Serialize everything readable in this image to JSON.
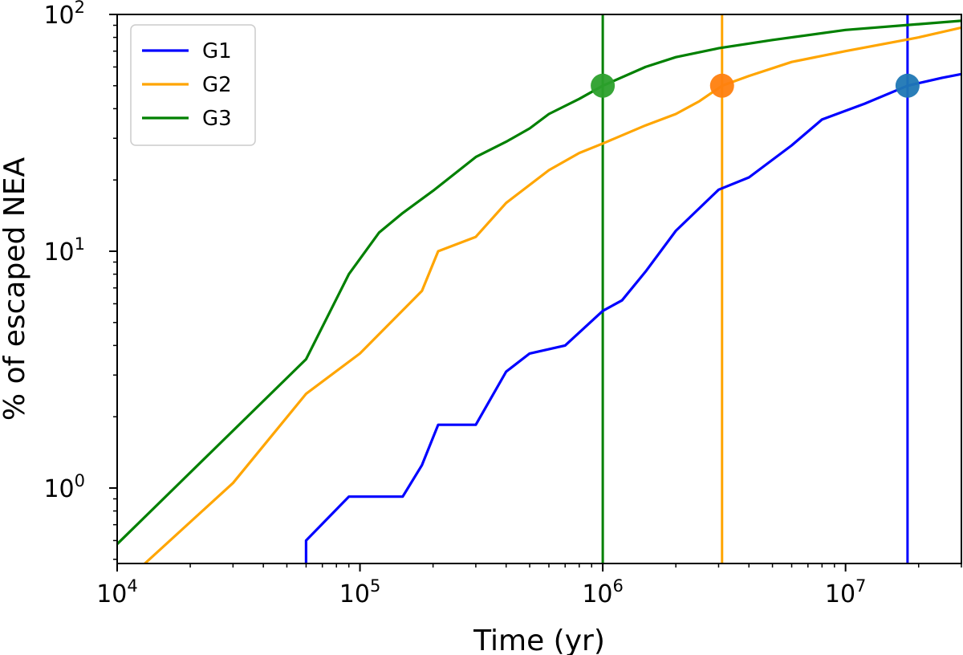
{
  "chart_data": {
    "type": "line",
    "xlabel": "Time (yr)",
    "ylabel": "% of escaped NEA",
    "xscale": "log",
    "yscale": "log",
    "xlim": [
      10000,
      30000000
    ],
    "ylim": [
      0.48,
      100
    ],
    "x_ticks": [
      {
        "value": 10000,
        "base": "10",
        "exp": "4"
      },
      {
        "value": 100000,
        "base": "10",
        "exp": "5"
      },
      {
        "value": 1000000,
        "base": "10",
        "exp": "6"
      },
      {
        "value": 10000000,
        "base": "10",
        "exp": "7"
      }
    ],
    "y_ticks": [
      {
        "value": 1,
        "base": "10",
        "exp": "0"
      },
      {
        "value": 10,
        "base": "10",
        "exp": "1"
      },
      {
        "value": 100,
        "base": "10",
        "exp": "2"
      }
    ],
    "grid": false,
    "legend_position": "top-left",
    "series": [
      {
        "name": "G1",
        "color": "#0000ff",
        "x": [
          60000,
          60000,
          90000,
          150000,
          180000,
          210000,
          300000,
          400000,
          500000,
          700000,
          1000000,
          1200000,
          1500000,
          2000000,
          3000000,
          4000000,
          6000000,
          8000000,
          12000000,
          18000000,
          25000000,
          30000000
        ],
        "y": [
          0.48,
          0.6,
          0.92,
          0.92,
          1.25,
          1.85,
          1.85,
          3.1,
          3.7,
          4.0,
          5.6,
          6.2,
          8.2,
          12.2,
          18.2,
          20.5,
          28.0,
          36.0,
          42.0,
          50.0,
          54.0,
          56.0
        ]
      },
      {
        "name": "G2",
        "color": "#ffa500",
        "x": [
          13000,
          30000,
          60000,
          100000,
          180000,
          210000,
          300000,
          400000,
          600000,
          800000,
          1000000,
          1500000,
          2000000,
          2500000,
          3100000,
          4000000,
          6000000,
          10000000,
          20000000,
          30000000
        ],
        "y": [
          0.48,
          1.05,
          2.5,
          3.7,
          6.8,
          10.0,
          11.5,
          16.0,
          22.0,
          26.0,
          28.5,
          34.0,
          38.0,
          43.0,
          50.0,
          55.0,
          63.0,
          70.0,
          80.0,
          88.0
        ]
      },
      {
        "name": "G3",
        "color": "#008000",
        "x": [
          10000,
          60000,
          90000,
          120000,
          150000,
          200000,
          300000,
          400000,
          500000,
          600000,
          800000,
          1000000,
          1500000,
          2000000,
          3000000,
          5000000,
          10000000,
          20000000,
          30000000
        ],
        "y": [
          0.58,
          3.5,
          8.0,
          12.0,
          14.5,
          18.0,
          25.0,
          29.0,
          33.0,
          38.0,
          44.0,
          50.0,
          60.0,
          66.0,
          72.0,
          78.0,
          86.0,
          91.0,
          94.0
        ]
      }
    ],
    "vertical_lines": [
      {
        "x": 18000000,
        "color": "#0000ff"
      },
      {
        "x": 3100000,
        "color": "#ffa500"
      },
      {
        "x": 1000000,
        "color": "#008000"
      }
    ],
    "markers": [
      {
        "x": 18000000,
        "y": 50,
        "color": "#1f77b4"
      },
      {
        "x": 3100000,
        "y": 50,
        "color": "#ff7f0e"
      },
      {
        "x": 1000000,
        "y": 50,
        "color": "#2ca02c"
      }
    ]
  }
}
